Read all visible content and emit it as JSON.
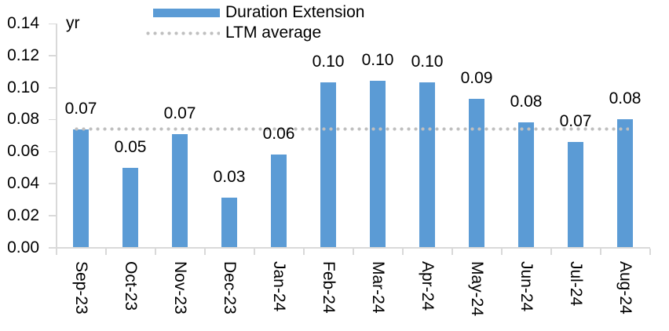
{
  "chart_data": {
    "type": "bar",
    "title": "",
    "unit_label": "yr",
    "categories": [
      "Sep-23",
      "Oct-23",
      "Nov-23",
      "Dec-23",
      "Jan-24",
      "Feb-24",
      "Mar-24",
      "Apr-24",
      "May-24",
      "Jun-24",
      "Jul-24",
      "Aug-24"
    ],
    "series": [
      {
        "name": "Duration Extension",
        "type": "bar",
        "values": [
          0.074,
          0.05,
          0.071,
          0.031,
          0.058,
          0.103,
          0.104,
          0.103,
          0.093,
          0.078,
          0.066,
          0.08
        ],
        "data_labels": [
          "0.07",
          "0.05",
          "0.07",
          "0.03",
          "0.06",
          "0.10",
          "0.10",
          "0.10",
          "0.09",
          "0.08",
          "0.07",
          "0.08"
        ],
        "color": "#5B9BD5"
      },
      {
        "name": "LTM average",
        "type": "dotted-line",
        "value": 0.074,
        "color": "#BFBFBF"
      }
    ],
    "y_axis": {
      "min": 0,
      "max": 0.14,
      "step": 0.02,
      "tick_labels": [
        "0.00",
        "0.02",
        "0.04",
        "0.06",
        "0.08",
        "0.10",
        "0.12",
        "0.14"
      ]
    },
    "x_axis": {
      "label_rotation": "90deg-down"
    },
    "grid": "off",
    "legend_position": "top-center"
  },
  "legend": {
    "items": [
      {
        "label": "Duration Extension"
      },
      {
        "label": "LTM average"
      }
    ]
  },
  "colors": {
    "bar": "#5B9BD5",
    "ltm_dots": "#BFBFBF",
    "axis": "#D9D9D9",
    "text": "#000000",
    "background": "#FFFFFF"
  }
}
